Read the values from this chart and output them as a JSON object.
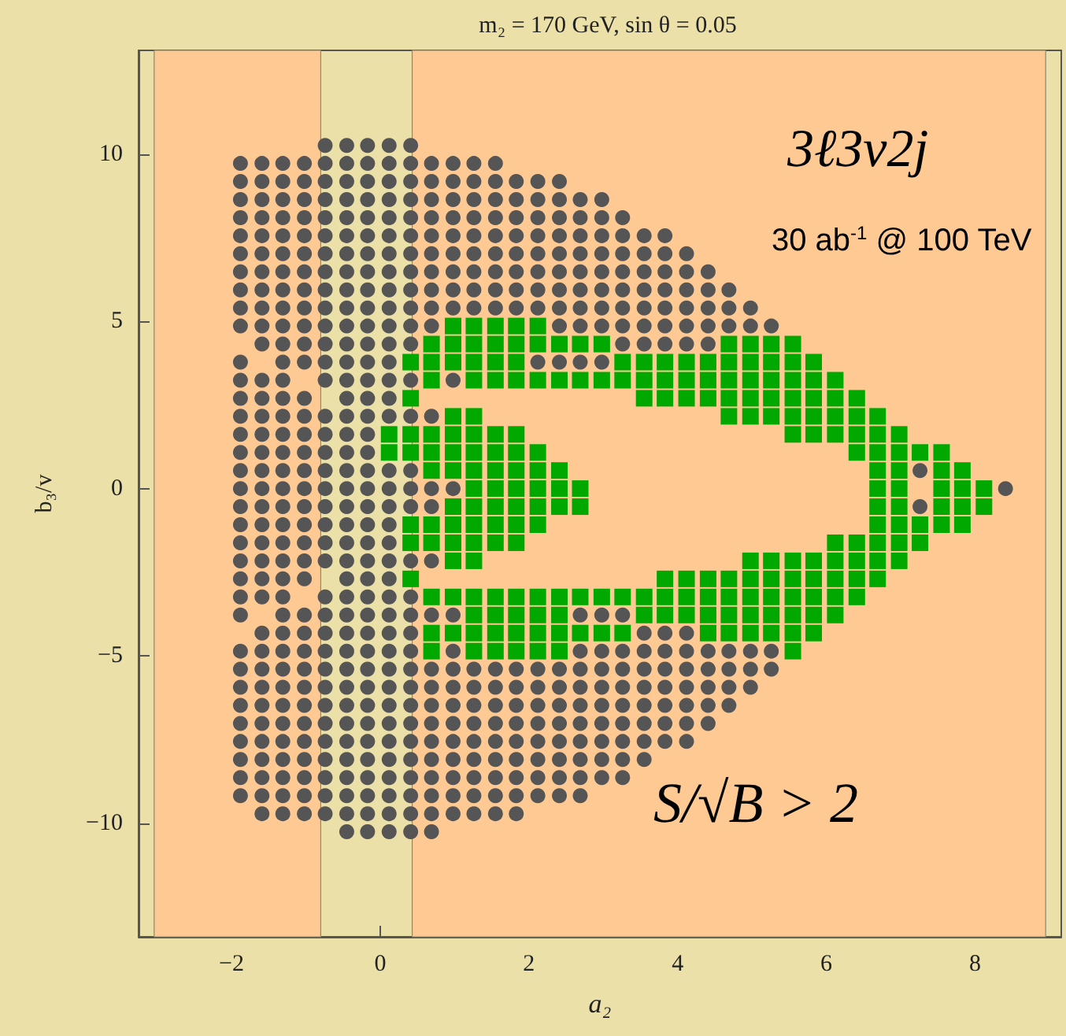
{
  "chart_data": {
    "type": "scatter",
    "title": "m₂ = 170 GeV, sin θ = 0.05",
    "xlabel": "a₂",
    "ylabel": "b₃/v",
    "annotations": [
      "3ℓ3ν2j",
      "30 ab$^{-1}$ @ 100 TeV",
      "S/√B > 2"
    ],
    "xlim": [
      -3.25,
      9.16
    ],
    "xticks": [
      -2,
      0,
      2,
      4,
      6,
      8
    ],
    "ylim": [
      -13.4,
      13.1
    ],
    "yticks": [
      -10,
      -5,
      0,
      5,
      10
    ],
    "grid": false,
    "bands": [
      {
        "axis": "x",
        "from": -3.04,
        "to": -0.8,
        "color": "#ffc994"
      },
      {
        "axis": "x",
        "from": 0.43,
        "to": 8.95,
        "color": "#ffc994"
      }
    ],
    "series": [
      {
        "color": "#555555",
        "marker": "circle",
        "x": [
          -0.74,
          -0.45,
          -0.17,
          0.12,
          0.41
        ],
        "values": [
          10.26,
          10.26,
          10.26,
          10.26,
          10.26
        ]
      },
      {
        "color": "#555555",
        "marker": "circle",
        "x": [
          -1.88,
          -1.59,
          -1.31,
          -1.02,
          -0.74,
          -0.45,
          -0.17,
          0.12,
          0.41,
          0.69,
          0.98,
          1.26,
          1.55
        ],
        "values": [
          9.72,
          9.72,
          9.72,
          9.72,
          9.72,
          9.72,
          9.72,
          9.72,
          9.72,
          9.72,
          9.72,
          9.72,
          9.72
        ]
      },
      {
        "color": "#555555",
        "marker": "circle",
        "x": [
          -1.88,
          -1.59,
          -1.31,
          -1.02,
          -0.74,
          -0.45,
          -0.17,
          0.12,
          0.41,
          0.69,
          0.98,
          1.26,
          1.55,
          1.83,
          2.12,
          2.41
        ],
        "values": [
          9.18,
          9.18,
          9.18,
          9.18,
          9.18,
          9.18,
          9.18,
          9.18,
          9.18,
          9.18,
          9.18,
          9.18,
          9.18,
          9.18,
          9.18,
          9.18
        ]
      },
      {
        "color": "#555555",
        "marker": "circle",
        "x": [
          -1.88,
          -1.59,
          -1.31,
          -1.02,
          -0.74,
          -0.45,
          -0.17,
          0.12,
          0.41,
          0.69,
          0.98,
          1.26,
          1.55,
          1.83,
          2.12,
          2.41,
          2.69,
          2.98
        ],
        "values": [
          8.64,
          8.64,
          8.64,
          8.64,
          8.64,
          8.64,
          8.64,
          8.64,
          8.64,
          8.64,
          8.64,
          8.64,
          8.64,
          8.64,
          8.64,
          8.64,
          8.64,
          8.64
        ]
      },
      {
        "color": "#555555",
        "marker": "circle",
        "x": [
          -1.88,
          -1.59,
          -1.31,
          -1.02,
          -0.74,
          -0.45,
          -0.17,
          0.12,
          0.41,
          0.69,
          0.98,
          1.26,
          1.55,
          1.83,
          2.12,
          2.41,
          2.69,
          2.98,
          3.26
        ],
        "values": [
          8.1,
          8.1,
          8.1,
          8.1,
          8.1,
          8.1,
          8.1,
          8.1,
          8.1,
          8.1,
          8.1,
          8.1,
          8.1,
          8.1,
          8.1,
          8.1,
          8.1,
          8.1,
          8.1
        ]
      },
      {
        "color": "#555555",
        "marker": "circle",
        "x": [
          -1.88,
          -1.59,
          -1.31,
          -1.02,
          -0.74,
          -0.45,
          -0.17,
          0.12,
          0.41,
          0.69,
          0.98,
          1.26,
          1.55,
          1.83,
          2.12,
          2.41,
          2.69,
          2.98,
          3.26,
          3.55,
          3.83
        ],
        "values": [
          7.56,
          7.56,
          7.56,
          7.56,
          7.56,
          7.56,
          7.56,
          7.56,
          7.56,
          7.56,
          7.56,
          7.56,
          7.56,
          7.56,
          7.56,
          7.56,
          7.56,
          7.56,
          7.56,
          7.56,
          7.56
        ]
      },
      {
        "color": "#555555",
        "marker": "circle",
        "x": [
          -1.88,
          -1.59,
          -1.31,
          -1.02,
          -0.74,
          -0.45,
          -0.17,
          0.12,
          0.41,
          0.69,
          0.98,
          1.26,
          1.55,
          1.83,
          2.12,
          2.41,
          2.69,
          2.98,
          3.26,
          3.55,
          3.83,
          4.12
        ],
        "values": [
          7.02,
          7.02,
          7.02,
          7.02,
          7.02,
          7.02,
          7.02,
          7.02,
          7.02,
          7.02,
          7.02,
          7.02,
          7.02,
          7.02,
          7.02,
          7.02,
          7.02,
          7.02,
          7.02,
          7.02,
          7.02,
          7.02
        ]
      },
      {
        "color": "#555555",
        "marker": "circle",
        "x": [
          -1.88,
          -1.59,
          -1.31,
          -1.02,
          -0.74,
          -0.45,
          -0.17,
          0.12,
          0.41,
          0.69,
          0.98,
          1.26,
          1.55,
          1.83,
          2.12,
          2.41,
          2.69,
          2.98,
          3.26,
          3.55,
          3.83,
          4.12,
          4.41
        ],
        "values": [
          6.48,
          6.48,
          6.48,
          6.48,
          6.48,
          6.48,
          6.48,
          6.48,
          6.48,
          6.48,
          6.48,
          6.48,
          6.48,
          6.48,
          6.48,
          6.48,
          6.48,
          6.48,
          6.48,
          6.48,
          6.48,
          6.48,
          6.48
        ]
      },
      {
        "color": "#555555",
        "marker": "circle",
        "x": [
          -1.88,
          -1.59,
          -1.31,
          -1.02,
          -0.74,
          -0.45,
          -0.17,
          0.12,
          0.41,
          0.69,
          0.98,
          1.26,
          1.55,
          1.83,
          2.12,
          2.41,
          2.69,
          2.98,
          3.26,
          3.55,
          3.83,
          4.12,
          4.41,
          4.69
        ],
        "values": [
          5.94,
          5.94,
          5.94,
          5.94,
          5.94,
          5.94,
          5.94,
          5.94,
          5.94,
          5.94,
          5.94,
          5.94,
          5.94,
          5.94,
          5.94,
          5.94,
          5.94,
          5.94,
          5.94,
          5.94,
          5.94,
          5.94,
          5.94,
          5.94
        ]
      },
      {
        "color": "#555555",
        "marker": "circle",
        "x": [
          -1.88,
          -1.59,
          -1.31,
          -1.02,
          -0.74,
          -0.45,
          -0.17,
          0.12,
          0.41,
          0.69,
          0.98,
          1.26,
          1.55,
          1.83,
          2.12,
          2.41,
          2.69,
          2.98,
          3.26,
          3.55,
          3.83,
          4.12,
          4.41,
          4.69,
          4.98
        ],
        "values": [
          5.4,
          5.4,
          5.4,
          5.4,
          5.4,
          5.4,
          5.4,
          5.4,
          5.4,
          5.4,
          5.4,
          5.4,
          5.4,
          5.4,
          5.4,
          5.4,
          5.4,
          5.4,
          5.4,
          5.4,
          5.4,
          5.4,
          5.4,
          5.4,
          5.4
        ]
      },
      {
        "color": "#555555",
        "marker": "circle",
        "x": [
          -1.88,
          -1.59,
          -1.31,
          -1.02,
          -0.74,
          -0.45,
          -0.17,
          0.12,
          0.41,
          0.69,
          2.41,
          2.69,
          2.98,
          3.26,
          3.55,
          3.83,
          4.12,
          4.41,
          4.69,
          4.98,
          5.26
        ],
        "values": [
          4.86,
          4.86,
          4.86,
          4.86,
          4.86,
          4.86,
          4.86,
          4.86,
          4.86,
          4.86,
          4.86,
          4.86,
          4.86,
          4.86,
          4.86,
          4.86,
          4.86,
          4.86,
          4.86,
          4.86,
          4.86
        ]
      },
      {
        "color": "#555555",
        "marker": "circle",
        "x": [
          -1.59,
          -1.31,
          -1.02,
          -0.74,
          -0.45,
          -0.17,
          0.12,
          0.41,
          3.26,
          3.55,
          3.83,
          4.12,
          4.41
        ],
        "values": [
          4.32,
          4.32,
          4.32,
          4.32,
          4.32,
          4.32,
          4.32,
          4.32,
          4.32,
          4.32,
          4.32,
          4.32,
          4.32
        ]
      },
      {
        "color": "#555555",
        "marker": "circle",
        "x": [
          -1.88,
          -1.31,
          -1.02,
          -0.74,
          -0.45,
          -0.17,
          0.12,
          2.12,
          2.41,
          2.69,
          2.98
        ],
        "values": [
          3.78,
          3.78,
          3.78,
          3.78,
          3.78,
          3.78,
          3.78,
          3.78,
          3.78,
          3.78,
          3.78
        ]
      },
      {
        "color": "#555555",
        "marker": "circle",
        "x": [
          -1.88,
          -1.59,
          -1.31,
          -0.74,
          -0.45,
          -0.17,
          0.12,
          0.41,
          0.98
        ],
        "values": [
          3.24,
          3.24,
          3.24,
          3.24,
          3.24,
          3.24,
          3.24,
          3.24,
          3.24
        ]
      },
      {
        "color": "#555555",
        "marker": "circle",
        "x": [
          -1.88,
          -1.59,
          -1.31,
          -1.02,
          -0.45,
          -0.17,
          0.12
        ],
        "values": [
          2.7,
          2.7,
          2.7,
          2.7,
          2.7,
          2.7,
          2.7
        ]
      },
      {
        "color": "#555555",
        "marker": "circle",
        "x": [
          -1.88,
          -1.59,
          -1.31,
          -1.02,
          -0.74,
          -0.45,
          -0.17,
          0.12,
          0.41,
          0.69
        ],
        "values": [
          2.16,
          2.16,
          2.16,
          2.16,
          2.16,
          2.16,
          2.16,
          2.16,
          2.16,
          2.16
        ]
      },
      {
        "color": "#555555",
        "marker": "circle",
        "x": [
          -1.88,
          -1.59,
          -1.31,
          -1.02,
          -0.74,
          -0.45,
          -0.17
        ],
        "values": [
          1.62,
          1.62,
          1.62,
          1.62,
          1.62,
          1.62,
          1.62
        ]
      },
      {
        "color": "#555555",
        "marker": "circle",
        "x": [
          -1.88,
          -1.59,
          -1.31,
          -1.02,
          -0.74,
          -0.45,
          -0.17
        ],
        "values": [
          1.08,
          1.08,
          1.08,
          1.08,
          1.08,
          1.08,
          1.08
        ]
      },
      {
        "color": "#555555",
        "marker": "circle",
        "x": [
          -1.88,
          -1.59,
          -1.31,
          -1.02,
          -0.74,
          -0.45,
          -0.17,
          0.12,
          0.41,
          7.26
        ],
        "values": [
          0.54,
          0.54,
          0.54,
          0.54,
          0.54,
          0.54,
          0.54,
          0.54,
          0.54,
          0.54
        ]
      },
      {
        "color": "#555555",
        "marker": "circle",
        "x": [
          -1.88,
          -1.59,
          -1.31,
          -1.02,
          -0.74,
          -0.45,
          -0.17,
          0.12,
          0.41,
          0.69,
          0.98,
          8.41
        ],
        "values": [
          0,
          0,
          0,
          0,
          0,
          0,
          0,
          0,
          0,
          0,
          0,
          0
        ]
      },
      {
        "color": "#555555",
        "marker": "circle",
        "x": [
          -1.88,
          -1.59,
          -1.31,
          -1.02,
          -0.74,
          -0.45,
          -0.17,
          0.12,
          0.41,
          0.69,
          7.26
        ],
        "values": [
          -0.54,
          -0.54,
          -0.54,
          -0.54,
          -0.54,
          -0.54,
          -0.54,
          -0.54,
          -0.54,
          -0.54,
          -0.54
        ]
      },
      {
        "color": "#555555",
        "marker": "circle",
        "x": [
          -1.88,
          -1.59,
          -1.31,
          -1.02,
          -0.74,
          -0.45,
          -0.17,
          0.12
        ],
        "values": [
          -1.08,
          -1.08,
          -1.08,
          -1.08,
          -1.08,
          -1.08,
          -1.08,
          -1.08
        ]
      },
      {
        "color": "#555555",
        "marker": "circle",
        "x": [
          -1.88,
          -1.59,
          -1.31,
          -1.02,
          -0.74,
          -0.45,
          -0.17,
          0.12
        ],
        "values": [
          -1.62,
          -1.62,
          -1.62,
          -1.62,
          -1.62,
          -1.62,
          -1.62,
          -1.62
        ]
      },
      {
        "color": "#555555",
        "marker": "circle",
        "x": [
          -1.88,
          -1.59,
          -1.31,
          -1.02,
          -0.74,
          -0.45,
          -0.17,
          0.12,
          0.41,
          0.69
        ],
        "values": [
          -2.16,
          -2.16,
          -2.16,
          -2.16,
          -2.16,
          -2.16,
          -2.16,
          -2.16,
          -2.16,
          -2.16
        ]
      },
      {
        "color": "#555555",
        "marker": "circle",
        "x": [
          -1.88,
          -1.59,
          -1.31,
          -1.02,
          -0.45,
          -0.17,
          0.12
        ],
        "values": [
          -2.7,
          -2.7,
          -2.7,
          -2.7,
          -2.7,
          -2.7,
          -2.7
        ]
      },
      {
        "color": "#555555",
        "marker": "circle",
        "x": [
          -1.88,
          -1.59,
          -1.31,
          -0.74,
          -0.45,
          -0.17,
          0.12,
          0.41
        ],
        "values": [
          -3.24,
          -3.24,
          -3.24,
          -3.24,
          -3.24,
          -3.24,
          -3.24,
          -3.24
        ]
      },
      {
        "color": "#555555",
        "marker": "circle",
        "x": [
          -1.88,
          -1.31,
          -1.02,
          -0.74,
          -0.45,
          -0.17,
          0.12,
          0.41,
          0.69,
          0.98,
          2.69,
          2.98,
          3.26
        ],
        "values": [
          -3.78,
          -3.78,
          -3.78,
          -3.78,
          -3.78,
          -3.78,
          -3.78,
          -3.78,
          -3.78,
          -3.78,
          -3.78,
          -3.78,
          -3.78
        ]
      },
      {
        "color": "#555555",
        "marker": "circle",
        "x": [
          -1.59,
          -1.31,
          -1.02,
          -0.74,
          -0.45,
          -0.17,
          0.12,
          0.41,
          3.55,
          3.83,
          4.12
        ],
        "values": [
          -4.32,
          -4.32,
          -4.32,
          -4.32,
          -4.32,
          -4.32,
          -4.32,
          -4.32,
          -4.32,
          -4.32,
          -4.32
        ]
      },
      {
        "color": "#555555",
        "marker": "circle",
        "x": [
          -1.88,
          -1.59,
          -1.31,
          -1.02,
          -0.74,
          -0.45,
          -0.17,
          0.12,
          0.41,
          0.98,
          2.69,
          2.98,
          3.26,
          3.55,
          3.83,
          4.12,
          4.41,
          4.69,
          4.98,
          5.26
        ],
        "values": [
          -4.86,
          -4.86,
          -4.86,
          -4.86,
          -4.86,
          -4.86,
          -4.86,
          -4.86,
          -4.86,
          -4.86,
          -4.86,
          -4.86,
          -4.86,
          -4.86,
          -4.86,
          -4.86,
          -4.86,
          -4.86,
          -4.86,
          -4.86
        ]
      },
      {
        "color": "#555555",
        "marker": "circle",
        "x": [
          -1.88,
          -1.59,
          -1.31,
          -1.02,
          -0.74,
          -0.45,
          -0.17,
          0.12,
          0.41,
          0.69,
          0.98,
          1.26,
          1.55,
          1.83,
          2.12,
          2.41,
          2.69,
          2.98,
          3.26,
          3.55,
          3.83,
          4.12,
          4.41,
          4.69,
          4.98,
          5.26
        ],
        "values": [
          -5.4,
          -5.4,
          -5.4,
          -5.4,
          -5.4,
          -5.4,
          -5.4,
          -5.4,
          -5.4,
          -5.4,
          -5.4,
          -5.4,
          -5.4,
          -5.4,
          -5.4,
          -5.4,
          -5.4,
          -5.4,
          -5.4,
          -5.4,
          -5.4,
          -5.4,
          -5.4,
          -5.4,
          -5.4,
          -5.4
        ]
      },
      {
        "color": "#555555",
        "marker": "circle",
        "x": [
          -1.88,
          -1.59,
          -1.31,
          -1.02,
          -0.74,
          -0.45,
          -0.17,
          0.12,
          0.41,
          0.69,
          0.98,
          1.26,
          1.55,
          1.83,
          2.12,
          2.41,
          2.69,
          2.98,
          3.26,
          3.55,
          3.83,
          4.12,
          4.41,
          4.69,
          4.98
        ],
        "values": [
          -5.94,
          -5.94,
          -5.94,
          -5.94,
          -5.94,
          -5.94,
          -5.94,
          -5.94,
          -5.94,
          -5.94,
          -5.94,
          -5.94,
          -5.94,
          -5.94,
          -5.94,
          -5.94,
          -5.94,
          -5.94,
          -5.94,
          -5.94,
          -5.94,
          -5.94,
          -5.94,
          -5.94,
          -5.94
        ]
      },
      {
        "color": "#555555",
        "marker": "circle",
        "x": [
          -1.88,
          -1.59,
          -1.31,
          -1.02,
          -0.74,
          -0.45,
          -0.17,
          0.12,
          0.41,
          0.69,
          0.98,
          1.26,
          1.55,
          1.83,
          2.12,
          2.41,
          2.69,
          2.98,
          3.26,
          3.55,
          3.83,
          4.12,
          4.41,
          4.69
        ],
        "values": [
          -6.48,
          -6.48,
          -6.48,
          -6.48,
          -6.48,
          -6.48,
          -6.48,
          -6.48,
          -6.48,
          -6.48,
          -6.48,
          -6.48,
          -6.48,
          -6.48,
          -6.48,
          -6.48,
          -6.48,
          -6.48,
          -6.48,
          -6.48,
          -6.48,
          -6.48,
          -6.48,
          -6.48
        ]
      },
      {
        "color": "#555555",
        "marker": "circle",
        "x": [
          -1.88,
          -1.59,
          -1.31,
          -1.02,
          -0.74,
          -0.45,
          -0.17,
          0.12,
          0.41,
          0.69,
          0.98,
          1.26,
          1.55,
          1.83,
          2.12,
          2.41,
          2.69,
          2.98,
          3.26,
          3.55,
          3.83,
          4.12,
          4.41
        ],
        "values": [
          -7.02,
          -7.02,
          -7.02,
          -7.02,
          -7.02,
          -7.02,
          -7.02,
          -7.02,
          -7.02,
          -7.02,
          -7.02,
          -7.02,
          -7.02,
          -7.02,
          -7.02,
          -7.02,
          -7.02,
          -7.02,
          -7.02,
          -7.02,
          -7.02,
          -7.02,
          -7.02
        ]
      },
      {
        "color": "#555555",
        "marker": "circle",
        "x": [
          -1.88,
          -1.59,
          -1.31,
          -1.02,
          -0.74,
          -0.45,
          -0.17,
          0.12,
          0.41,
          0.69,
          0.98,
          1.26,
          1.55,
          1.83,
          2.12,
          2.41,
          2.69,
          2.98,
          3.26,
          3.55,
          3.83,
          4.12
        ],
        "values": [
          -7.56,
          -7.56,
          -7.56,
          -7.56,
          -7.56,
          -7.56,
          -7.56,
          -7.56,
          -7.56,
          -7.56,
          -7.56,
          -7.56,
          -7.56,
          -7.56,
          -7.56,
          -7.56,
          -7.56,
          -7.56,
          -7.56,
          -7.56,
          -7.56,
          -7.56
        ]
      },
      {
        "color": "#555555",
        "marker": "circle",
        "x": [
          -1.88,
          -1.59,
          -1.31,
          -1.02,
          -0.74,
          -0.45,
          -0.17,
          0.12,
          0.41,
          0.69,
          0.98,
          1.26,
          1.55,
          1.83,
          2.12,
          2.41,
          2.69,
          2.98,
          3.26,
          3.55
        ],
        "values": [
          -8.1,
          -8.1,
          -8.1,
          -8.1,
          -8.1,
          -8.1,
          -8.1,
          -8.1,
          -8.1,
          -8.1,
          -8.1,
          -8.1,
          -8.1,
          -8.1,
          -8.1,
          -8.1,
          -8.1,
          -8.1,
          -8.1,
          -8.1
        ]
      },
      {
        "color": "#555555",
        "marker": "circle",
        "x": [
          -1.88,
          -1.59,
          -1.31,
          -1.02,
          -0.74,
          -0.45,
          -0.17,
          0.12,
          0.41,
          0.69,
          0.98,
          1.26,
          1.55,
          1.83,
          2.12,
          2.41,
          2.69,
          2.98,
          3.26
        ],
        "values": [
          -8.64,
          -8.64,
          -8.64,
          -8.64,
          -8.64,
          -8.64,
          -8.64,
          -8.64,
          -8.64,
          -8.64,
          -8.64,
          -8.64,
          -8.64,
          -8.64,
          -8.64,
          -8.64,
          -8.64,
          -8.64,
          -8.64
        ]
      },
      {
        "color": "#555555",
        "marker": "circle",
        "x": [
          -1.88,
          -1.59,
          -1.31,
          -1.02,
          -0.74,
          -0.45,
          -0.17,
          0.12,
          0.41,
          0.69,
          0.98,
          1.26,
          1.55,
          1.83,
          2.12,
          2.41,
          2.69
        ],
        "values": [
          -9.18,
          -9.18,
          -9.18,
          -9.18,
          -9.18,
          -9.18,
          -9.18,
          -9.18,
          -9.18,
          -9.18,
          -9.18,
          -9.18,
          -9.18,
          -9.18,
          -9.18,
          -9.18,
          -9.18
        ]
      },
      {
        "color": "#555555",
        "marker": "circle",
        "x": [
          -1.59,
          -1.31,
          -1.02,
          -0.74,
          -0.45,
          -0.17,
          0.12,
          0.41,
          0.69,
          0.98,
          1.26,
          1.55,
          1.83
        ],
        "values": [
          -9.72,
          -9.72,
          -9.72,
          -9.72,
          -9.72,
          -9.72,
          -9.72,
          -9.72,
          -9.72,
          -9.72,
          -9.72,
          -9.72,
          -9.72
        ]
      },
      {
        "color": "#555555",
        "marker": "circle",
        "x": [
          -0.45,
          -0.17,
          0.12,
          0.41,
          0.69
        ],
        "values": [
          -10.26,
          -10.26,
          -10.26,
          -10.26,
          -10.26
        ]
      },
      {
        "color": "#00a800",
        "marker": "square",
        "x": [
          0.98,
          1.26,
          1.55,
          1.83,
          2.12
        ],
        "values": [
          4.86,
          4.86,
          4.86,
          4.86,
          4.86
        ]
      },
      {
        "color": "#00a800",
        "marker": "square",
        "x": [
          0.69,
          0.98,
          1.26,
          1.55,
          1.83,
          2.12,
          2.41,
          2.69,
          2.98,
          4.69,
          4.98,
          5.26,
          5.55
        ],
        "values": [
          4.32,
          4.32,
          4.32,
          4.32,
          4.32,
          4.32,
          4.32,
          4.32,
          4.32,
          4.32,
          4.32,
          4.32,
          4.32
        ]
      },
      {
        "color": "#00a800",
        "marker": "square",
        "x": [
          0.41,
          0.69,
          0.98,
          1.26,
          1.55,
          1.83,
          3.26,
          3.55,
          3.83,
          4.12,
          4.41,
          4.69,
          4.98,
          5.26,
          5.55,
          5.83
        ],
        "values": [
          3.78,
          3.78,
          3.78,
          3.78,
          3.78,
          3.78,
          3.78,
          3.78,
          3.78,
          3.78,
          3.78,
          3.78,
          3.78,
          3.78,
          3.78,
          3.78
        ]
      },
      {
        "color": "#00a800",
        "marker": "square",
        "x": [
          0.69,
          1.26,
          1.55,
          1.83,
          2.12,
          2.41,
          2.69,
          2.98,
          3.26,
          3.55,
          3.83,
          4.12,
          4.41,
          4.69,
          4.98,
          5.26,
          5.55,
          5.83,
          6.12
        ],
        "values": [
          3.24,
          3.24,
          3.24,
          3.24,
          3.24,
          3.24,
          3.24,
          3.24,
          3.24,
          3.24,
          3.24,
          3.24,
          3.24,
          3.24,
          3.24,
          3.24,
          3.24,
          3.24,
          3.24
        ]
      },
      {
        "color": "#00a800",
        "marker": "square",
        "x": [
          0.41,
          3.55,
          3.83,
          4.12,
          4.41,
          4.69,
          4.98,
          5.26,
          5.55,
          5.83,
          6.12,
          6.41
        ],
        "values": [
          2.7,
          2.7,
          2.7,
          2.7,
          2.7,
          2.7,
          2.7,
          2.7,
          2.7,
          2.7,
          2.7,
          2.7
        ]
      },
      {
        "color": "#00a800",
        "marker": "square",
        "x": [
          0.98,
          1.26,
          4.69,
          4.98,
          5.26,
          5.55,
          5.83,
          6.12,
          6.41,
          6.69
        ],
        "values": [
          2.16,
          2.16,
          2.16,
          2.16,
          2.16,
          2.16,
          2.16,
          2.16,
          2.16,
          2.16
        ]
      },
      {
        "color": "#00a800",
        "marker": "square",
        "x": [
          0.12,
          0.41,
          0.69,
          0.98,
          1.26,
          1.55,
          1.83,
          5.55,
          5.83,
          6.12,
          6.41,
          6.69,
          6.98
        ],
        "values": [
          1.62,
          1.62,
          1.62,
          1.62,
          1.62,
          1.62,
          1.62,
          1.62,
          1.62,
          1.62,
          1.62,
          1.62,
          1.62
        ]
      },
      {
        "color": "#00a800",
        "marker": "square",
        "x": [
          0.12,
          0.41,
          0.69,
          0.98,
          1.26,
          1.55,
          1.83,
          2.12,
          6.41,
          6.69,
          6.98,
          7.26,
          7.55
        ],
        "values": [
          1.08,
          1.08,
          1.08,
          1.08,
          1.08,
          1.08,
          1.08,
          1.08,
          1.08,
          1.08,
          1.08,
          1.08,
          1.08
        ]
      },
      {
        "color": "#00a800",
        "marker": "square",
        "x": [
          0.69,
          0.98,
          1.26,
          1.55,
          1.83,
          2.12,
          2.41,
          6.69,
          6.98,
          7.55,
          7.83
        ],
        "values": [
          0.54,
          0.54,
          0.54,
          0.54,
          0.54,
          0.54,
          0.54,
          0.54,
          0.54,
          0.54,
          0.54
        ]
      },
      {
        "color": "#00a800",
        "marker": "square",
        "x": [
          1.26,
          1.55,
          1.83,
          2.12,
          2.41,
          2.69,
          6.69,
          6.98,
          7.55,
          7.83,
          8.12
        ],
        "values": [
          0,
          0,
          0,
          0,
          0,
          0,
          0,
          0,
          0,
          0,
          0
        ]
      },
      {
        "color": "#00a800",
        "marker": "square",
        "x": [
          0.98,
          1.26,
          1.55,
          1.83,
          2.12,
          2.41,
          2.69,
          6.69,
          6.98,
          7.55,
          7.83,
          8.12
        ],
        "values": [
          -0.54,
          -0.54,
          -0.54,
          -0.54,
          -0.54,
          -0.54,
          -0.54,
          -0.54,
          -0.54,
          -0.54,
          -0.54,
          -0.54
        ]
      },
      {
        "color": "#00a800",
        "marker": "square",
        "x": [
          0.41,
          0.69,
          0.98,
          1.26,
          1.55,
          1.83,
          2.12,
          6.69,
          6.98,
          7.26,
          7.55,
          7.83
        ],
        "values": [
          -1.08,
          -1.08,
          -1.08,
          -1.08,
          -1.08,
          -1.08,
          -1.08,
          -1.08,
          -1.08,
          -1.08,
          -1.08,
          -1.08
        ]
      },
      {
        "color": "#00a800",
        "marker": "square",
        "x": [
          0.41,
          0.69,
          0.98,
          1.26,
          1.55,
          1.83,
          6.12,
          6.41,
          6.69,
          6.98,
          7.26
        ],
        "values": [
          -1.62,
          -1.62,
          -1.62,
          -1.62,
          -1.62,
          -1.62,
          -1.62,
          -1.62,
          -1.62,
          -1.62,
          -1.62
        ]
      },
      {
        "color": "#00a800",
        "marker": "square",
        "x": [
          0.98,
          1.26,
          4.98,
          5.26,
          5.55,
          5.83,
          6.12,
          6.41,
          6.69,
          6.98
        ],
        "values": [
          -2.16,
          -2.16,
          -2.16,
          -2.16,
          -2.16,
          -2.16,
          -2.16,
          -2.16,
          -2.16,
          -2.16
        ]
      },
      {
        "color": "#00a800",
        "marker": "square",
        "x": [
          0.41,
          3.83,
          4.12,
          4.41,
          4.69,
          4.98,
          5.26,
          5.55,
          5.83,
          6.12,
          6.41,
          6.69
        ],
        "values": [
          -2.7,
          -2.7,
          -2.7,
          -2.7,
          -2.7,
          -2.7,
          -2.7,
          -2.7,
          -2.7,
          -2.7,
          -2.7,
          -2.7
        ]
      },
      {
        "color": "#00a800",
        "marker": "square",
        "x": [
          0.69,
          0.98,
          1.26,
          1.55,
          1.83,
          2.12,
          2.41,
          2.69,
          2.98,
          3.26,
          3.55,
          3.83,
          4.12,
          4.41,
          4.69,
          4.98,
          5.26,
          5.55,
          5.83,
          6.12,
          6.41
        ],
        "values": [
          -3.24,
          -3.24,
          -3.24,
          -3.24,
          -3.24,
          -3.24,
          -3.24,
          -3.24,
          -3.24,
          -3.24,
          -3.24,
          -3.24,
          -3.24,
          -3.24,
          -3.24,
          -3.24,
          -3.24,
          -3.24,
          -3.24,
          -3.24,
          -3.24
        ]
      },
      {
        "color": "#00a800",
        "marker": "square",
        "x": [
          1.26,
          1.55,
          1.83,
          2.12,
          2.41,
          3.55,
          3.83,
          4.12,
          4.41,
          4.69,
          4.98,
          5.26,
          5.55,
          5.83,
          6.12
        ],
        "values": [
          -3.78,
          -3.78,
          -3.78,
          -3.78,
          -3.78,
          -3.78,
          -3.78,
          -3.78,
          -3.78,
          -3.78,
          -3.78,
          -3.78,
          -3.78,
          -3.78,
          -3.78
        ]
      },
      {
        "color": "#00a800",
        "marker": "square",
        "x": [
          0.69,
          0.98,
          1.26,
          1.55,
          1.83,
          2.12,
          2.41,
          2.69,
          2.98,
          3.26,
          4.41,
          4.69,
          4.98,
          5.26,
          5.55,
          5.83
        ],
        "values": [
          -4.32,
          -4.32,
          -4.32,
          -4.32,
          -4.32,
          -4.32,
          -4.32,
          -4.32,
          -4.32,
          -4.32,
          -4.32,
          -4.32,
          -4.32,
          -4.32,
          -4.32,
          -4.32
        ]
      },
      {
        "color": "#00a800",
        "marker": "square",
        "x": [
          0.69,
          1.26,
          1.55,
          1.83,
          2.12,
          2.41,
          5.55
        ],
        "values": [
          -4.86,
          -4.86,
          -4.86,
          -4.86,
          -4.86,
          -4.86,
          -4.86
        ]
      }
    ]
  }
}
